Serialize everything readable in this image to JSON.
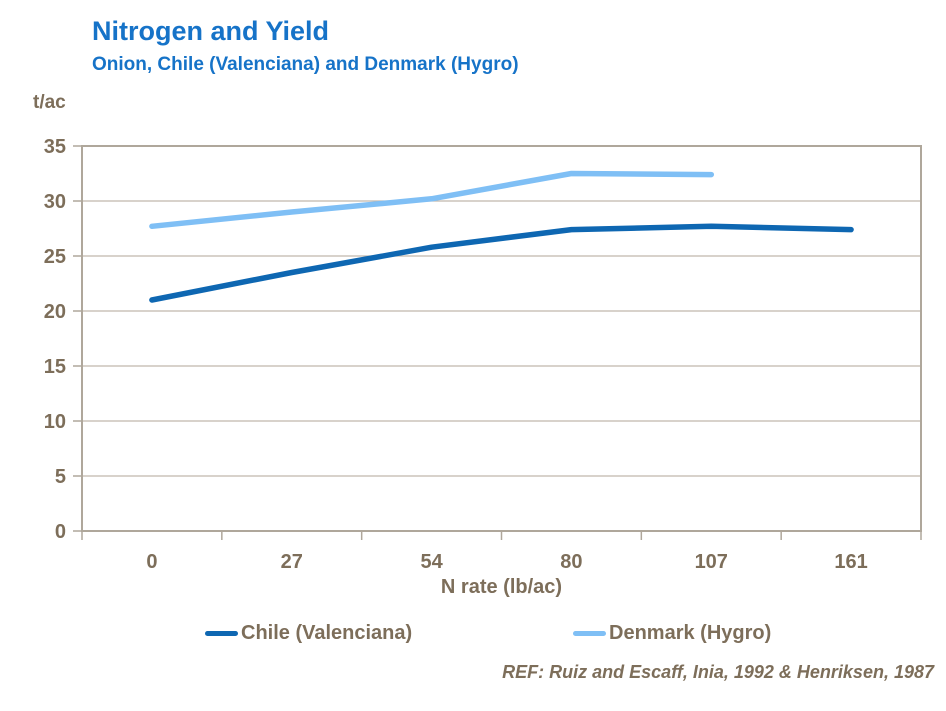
{
  "header": {
    "title": "Nitrogen and Yield",
    "subtitle": "Onion, Chile (Valenciana) and Denmark (Hygro)"
  },
  "colors": {
    "title": "#1673C8",
    "axis_text": "#7D6E5A",
    "grid": "#C1B8AC",
    "frame": "#AFA79B"
  },
  "chart_data": {
    "type": "line",
    "title": "Nitrogen and Yield",
    "subtitle": "Onion, Chile (Valenciana) and Denmark (Hygro)",
    "y_unit": "t/ac",
    "xlabel": "N rate (lb/ac)",
    "ylabel": "t/ac",
    "categories": [
      "0",
      "27",
      "54",
      "80",
      "107",
      "161"
    ],
    "y_ticks": [
      0,
      5,
      10,
      15,
      20,
      25,
      30,
      35
    ],
    "ylim": [
      0,
      35
    ],
    "grid": "horizontal",
    "legend_position": "bottom",
    "series": [
      {
        "name": "Chile (Valenciana)",
        "slug": "chile",
        "color": "#0E67B2",
        "values": [
          21.0,
          23.5,
          25.8,
          27.4,
          27.7,
          27.4
        ]
      },
      {
        "name": "Denmark (Hygro)",
        "slug": "denmark",
        "color": "#7FBFF5",
        "values": [
          27.7,
          29.0,
          30.2,
          32.5,
          32.4,
          null
        ]
      }
    ]
  },
  "footer": {
    "ref": "REF: Ruiz and Escaff, Inia, 1992 & Henriksen, 1987"
  }
}
